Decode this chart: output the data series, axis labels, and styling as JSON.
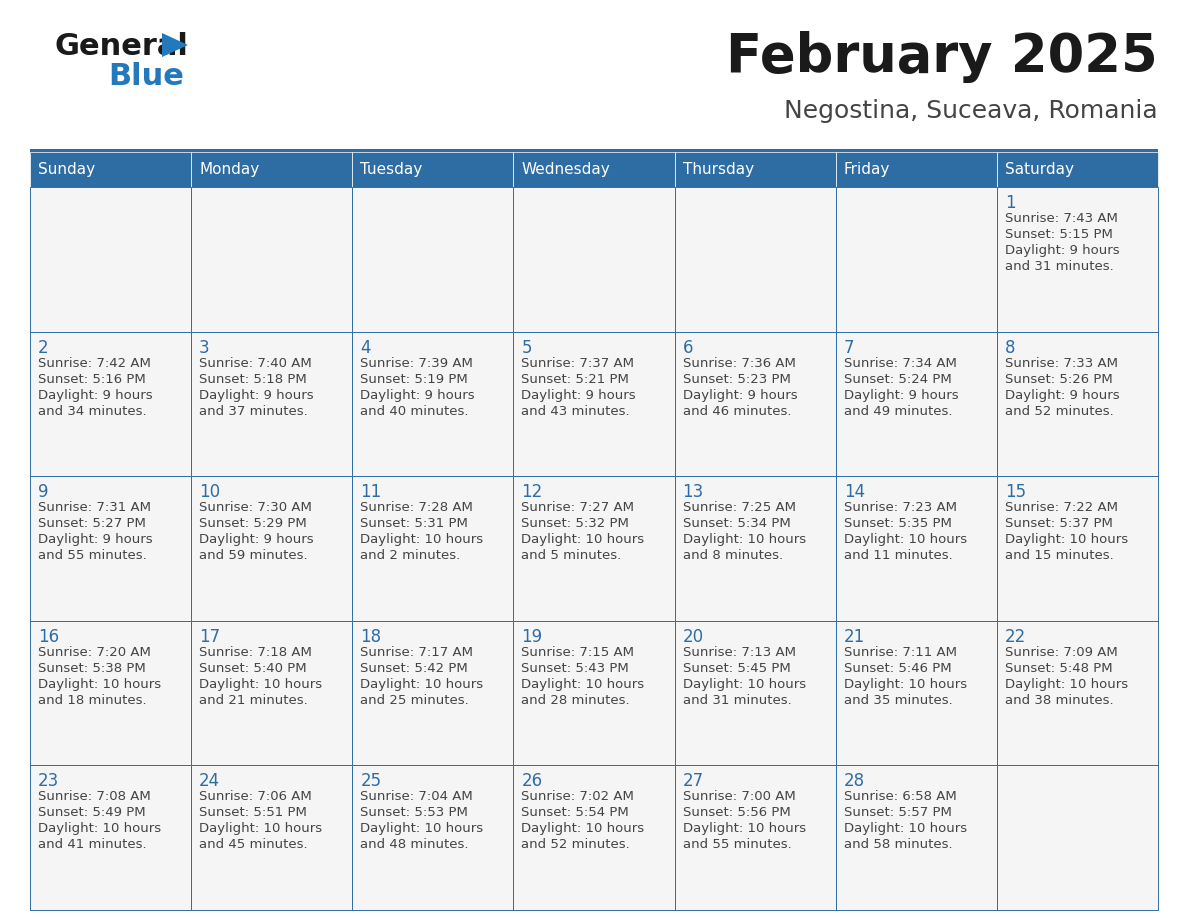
{
  "title": "February 2025",
  "subtitle": "Negostina, Suceava, Romania",
  "header_bg": "#2E6DA4",
  "header_text_color": "#FFFFFF",
  "cell_bg": "#F5F5F5",
  "border_color": "#2E6DA4",
  "day_names": [
    "Sunday",
    "Monday",
    "Tuesday",
    "Wednesday",
    "Thursday",
    "Friday",
    "Saturday"
  ],
  "text_color": "#444444",
  "day_num_color": "#2E6DA4",
  "logo_general_color": "#1a1a1a",
  "logo_blue_color": "#2479BD",
  "logo_triangle_color": "#2479BD",
  "calendar_data": [
    [
      null,
      null,
      null,
      null,
      null,
      null,
      {
        "day": "1",
        "sunrise": "7:43 AM",
        "sunset": "5:15 PM",
        "daylight1": "9 hours",
        "daylight2": "and 31 minutes."
      }
    ],
    [
      {
        "day": "2",
        "sunrise": "7:42 AM",
        "sunset": "5:16 PM",
        "daylight1": "9 hours",
        "daylight2": "and 34 minutes."
      },
      {
        "day": "3",
        "sunrise": "7:40 AM",
        "sunset": "5:18 PM",
        "daylight1": "9 hours",
        "daylight2": "and 37 minutes."
      },
      {
        "day": "4",
        "sunrise": "7:39 AM",
        "sunset": "5:19 PM",
        "daylight1": "9 hours",
        "daylight2": "and 40 minutes."
      },
      {
        "day": "5",
        "sunrise": "7:37 AM",
        "sunset": "5:21 PM",
        "daylight1": "9 hours",
        "daylight2": "and 43 minutes."
      },
      {
        "day": "6",
        "sunrise": "7:36 AM",
        "sunset": "5:23 PM",
        "daylight1": "9 hours",
        "daylight2": "and 46 minutes."
      },
      {
        "day": "7",
        "sunrise": "7:34 AM",
        "sunset": "5:24 PM",
        "daylight1": "9 hours",
        "daylight2": "and 49 minutes."
      },
      {
        "day": "8",
        "sunrise": "7:33 AM",
        "sunset": "5:26 PM",
        "daylight1": "9 hours",
        "daylight2": "and 52 minutes."
      }
    ],
    [
      {
        "day": "9",
        "sunrise": "7:31 AM",
        "sunset": "5:27 PM",
        "daylight1": "9 hours",
        "daylight2": "and 55 minutes."
      },
      {
        "day": "10",
        "sunrise": "7:30 AM",
        "sunset": "5:29 PM",
        "daylight1": "9 hours",
        "daylight2": "and 59 minutes."
      },
      {
        "day": "11",
        "sunrise": "7:28 AM",
        "sunset": "5:31 PM",
        "daylight1": "10 hours",
        "daylight2": "and 2 minutes."
      },
      {
        "day": "12",
        "sunrise": "7:27 AM",
        "sunset": "5:32 PM",
        "daylight1": "10 hours",
        "daylight2": "and 5 minutes."
      },
      {
        "day": "13",
        "sunrise": "7:25 AM",
        "sunset": "5:34 PM",
        "daylight1": "10 hours",
        "daylight2": "and 8 minutes."
      },
      {
        "day": "14",
        "sunrise": "7:23 AM",
        "sunset": "5:35 PM",
        "daylight1": "10 hours",
        "daylight2": "and 11 minutes."
      },
      {
        "day": "15",
        "sunrise": "7:22 AM",
        "sunset": "5:37 PM",
        "daylight1": "10 hours",
        "daylight2": "and 15 minutes."
      }
    ],
    [
      {
        "day": "16",
        "sunrise": "7:20 AM",
        "sunset": "5:38 PM",
        "daylight1": "10 hours",
        "daylight2": "and 18 minutes."
      },
      {
        "day": "17",
        "sunrise": "7:18 AM",
        "sunset": "5:40 PM",
        "daylight1": "10 hours",
        "daylight2": "and 21 minutes."
      },
      {
        "day": "18",
        "sunrise": "7:17 AM",
        "sunset": "5:42 PM",
        "daylight1": "10 hours",
        "daylight2": "and 25 minutes."
      },
      {
        "day": "19",
        "sunrise": "7:15 AM",
        "sunset": "5:43 PM",
        "daylight1": "10 hours",
        "daylight2": "and 28 minutes."
      },
      {
        "day": "20",
        "sunrise": "7:13 AM",
        "sunset": "5:45 PM",
        "daylight1": "10 hours",
        "daylight2": "and 31 minutes."
      },
      {
        "day": "21",
        "sunrise": "7:11 AM",
        "sunset": "5:46 PM",
        "daylight1": "10 hours",
        "daylight2": "and 35 minutes."
      },
      {
        "day": "22",
        "sunrise": "7:09 AM",
        "sunset": "5:48 PM",
        "daylight1": "10 hours",
        "daylight2": "and 38 minutes."
      }
    ],
    [
      {
        "day": "23",
        "sunrise": "7:08 AM",
        "sunset": "5:49 PM",
        "daylight1": "10 hours",
        "daylight2": "and 41 minutes."
      },
      {
        "day": "24",
        "sunrise": "7:06 AM",
        "sunset": "5:51 PM",
        "daylight1": "10 hours",
        "daylight2": "and 45 minutes."
      },
      {
        "day": "25",
        "sunrise": "7:04 AM",
        "sunset": "5:53 PM",
        "daylight1": "10 hours",
        "daylight2": "and 48 minutes."
      },
      {
        "day": "26",
        "sunrise": "7:02 AM",
        "sunset": "5:54 PM",
        "daylight1": "10 hours",
        "daylight2": "and 52 minutes."
      },
      {
        "day": "27",
        "sunrise": "7:00 AM",
        "sunset": "5:56 PM",
        "daylight1": "10 hours",
        "daylight2": "and 55 minutes."
      },
      {
        "day": "28",
        "sunrise": "6:58 AM",
        "sunset": "5:57 PM",
        "daylight1": "10 hours",
        "daylight2": "and 58 minutes."
      },
      null
    ]
  ]
}
